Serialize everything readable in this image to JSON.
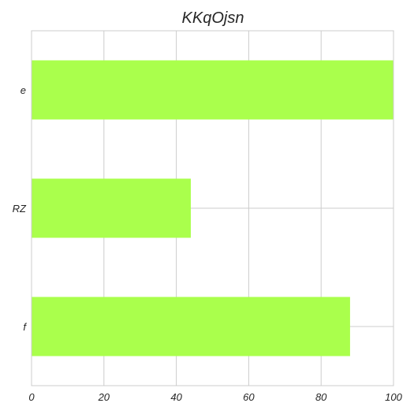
{
  "chart_data": {
    "type": "bar",
    "orientation": "horizontal",
    "title": "KKqOjsn",
    "xlabel": "",
    "ylabel": "",
    "categories": [
      "e",
      "RZ",
      "f"
    ],
    "values": [
      100,
      44,
      88
    ],
    "xlim": [
      0,
      100
    ],
    "xticks": [
      "0",
      "20",
      "40",
      "60",
      "80",
      "100"
    ],
    "grid": true,
    "bar_color": "#aaff4c",
    "grid_color": "#cccccc"
  }
}
